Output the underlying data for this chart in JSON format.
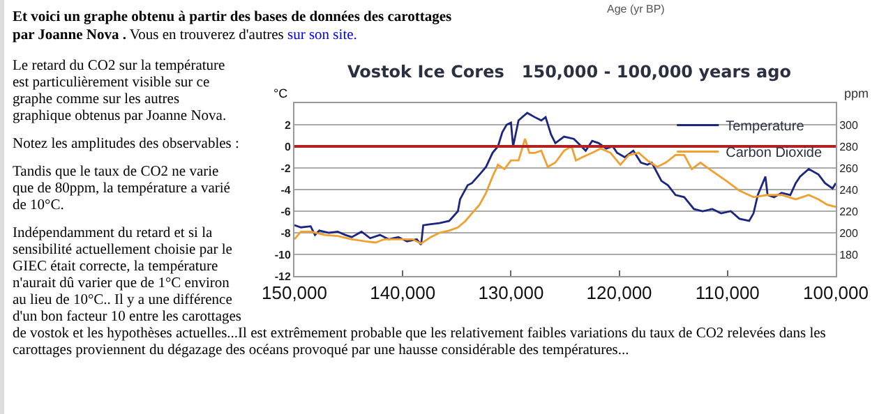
{
  "chart_data": {
    "type": "line",
    "title": "Vostok Ice Cores   150,000 - 100,000 years ago",
    "ylabel": "°C",
    "y2label": "ppm",
    "annotations": [
      "Age (yr BP)",
      "Et voici un graphe obtenu à partir des bases de données des carottages par Joanne Nova .",
      "Vous en trouverez d'autres",
      "sur son site.",
      "Le retard du CO2 sur la température est particulièrement visible sur ce graphe comme sur les autres graphique obtenus par Joanne Nova.",
      "Notez les amplitudes des observables :",
      "Tandis que le taux de CO2 ne varie que de 80ppm, la température a varié de 10°C.",
      "Indépendamment du retard et si la sensibilité actuellement choisie par le GIEC était correcte, la température n'aurait dû varier que de 1°C environ au lieu de 10°C.. Il y a une différence d'un bon facteur 10 entre les carottages de vostok et les hypothèses actuelles...Il est extrêmement probable que les relativement faibles variations du taux de CO2 relevées dans les carottages proviennent du dégazage des océans provoqué par une hausse considérable des températures..."
    ],
    "xlim": [
      150000,
      100000
    ],
    "xticks": [
      {
        "value": 150000,
        "label": "150,000"
      },
      {
        "value": 140000,
        "label": "140,000"
      },
      {
        "value": 130000,
        "label": "130,000"
      },
      {
        "value": 120000,
        "label": "120,000"
      },
      {
        "value": 110000,
        "label": "110,000"
      },
      {
        "value": 100000,
        "label": "100,000"
      }
    ],
    "ylim": [
      -12,
      4
    ],
    "yticks": [
      -12,
      -10,
      -8,
      -6,
      -4,
      -2,
      0,
      2
    ],
    "y2lim": [
      160,
      320
    ],
    "y2ticks": [
      180,
      200,
      220,
      240,
      260,
      280,
      300
    ],
    "grid": "y",
    "legend": "top right",
    "ref_lines": [
      {
        "axis": "y",
        "value": 0,
        "color": "#b22222"
      }
    ],
    "series": [
      {
        "name": "Temperature",
        "color": "#1c2580",
        "x": [
          150000,
          149400,
          148500,
          148100,
          147700,
          146800,
          146000,
          145300,
          144700,
          143800,
          143000,
          142100,
          141300,
          140400,
          139600,
          138700,
          138300,
          138100,
          137400,
          136600,
          135700,
          134900,
          134700,
          134000,
          133600,
          132900,
          132300,
          131700,
          131200,
          130800,
          130400,
          130000,
          129800,
          129300,
          128500,
          127800,
          127200,
          126800,
          126300,
          125900,
          125100,
          124200,
          123800,
          123100,
          122500,
          121900,
          121200,
          120600,
          120200,
          119500,
          118700,
          118000,
          117400,
          117000,
          116100,
          115500,
          114800,
          114000,
          113100,
          112300,
          111400,
          110600,
          109700,
          108900,
          108000,
          107600,
          107200,
          106500,
          106300,
          105700,
          105000,
          104200,
          103700,
          103300,
          102500,
          101600,
          101000,
          100300,
          100000
        ],
        "values": [
          -7.3,
          -7.5,
          -7.4,
          -8.2,
          -7.8,
          -8.0,
          -7.9,
          -8.2,
          -8.4,
          -7.9,
          -8.5,
          -8.2,
          -8.6,
          -8.4,
          -8.8,
          -8.6,
          -9.1,
          -7.3,
          -7.2,
          -7.1,
          -6.9,
          -6.0,
          -4.9,
          -3.6,
          -3.4,
          -2.6,
          -1.9,
          -0.6,
          0.0,
          1.3,
          2.0,
          2.2,
          0.0,
          2.4,
          3.1,
          2.7,
          2.4,
          2.7,
          1.1,
          0.3,
          0.9,
          0.7,
          0.3,
          -0.4,
          0.5,
          0.3,
          -0.2,
          0.0,
          -0.6,
          -1.0,
          -0.4,
          -1.5,
          -1.7,
          -1.5,
          -3.2,
          -3.6,
          -4.5,
          -4.7,
          -5.8,
          -6.0,
          -5.8,
          -6.2,
          -6.0,
          -6.7,
          -6.9,
          -6.2,
          -4.5,
          -2.8,
          -4.5,
          -4.7,
          -4.3,
          -4.5,
          -3.4,
          -2.8,
          -2.1,
          -2.6,
          -3.4,
          -3.9,
          -3.4
        ]
      },
      {
        "name": "Carbon Dioxide",
        "color": "#f0a030",
        "axis": "y2",
        "x": [
          150000,
          149400,
          148500,
          147200,
          146000,
          144700,
          143400,
          142500,
          141700,
          140400,
          139100,
          138300,
          137400,
          136600,
          135700,
          134900,
          134200,
          133600,
          132900,
          132300,
          131700,
          131200,
          130600,
          130000,
          129300,
          128700,
          128300,
          127800,
          127200,
          126600,
          125900,
          125100,
          124400,
          124000,
          123400,
          122500,
          121700,
          120800,
          119900,
          119100,
          118200,
          117400,
          116500,
          115700,
          114800,
          114000,
          113300,
          112500,
          111400,
          110100,
          108900,
          107600,
          106300,
          105000,
          103700,
          102500,
          101600,
          100800,
          100000
        ],
        "values": [
          194,
          201,
          201,
          198,
          197,
          194,
          192,
          191,
          194,
          194,
          194,
          190,
          196,
          200,
          202,
          205,
          211,
          218,
          226,
          237,
          252,
          263,
          259,
          267,
          267,
          287,
          274,
          274,
          276,
          261,
          265,
          276,
          280,
          267,
          270,
          274,
          278,
          274,
          263,
          272,
          274,
          267,
          261,
          265,
          272,
          272,
          259,
          265,
          257,
          248,
          239,
          233,
          235,
          235,
          231,
          235,
          231,
          226,
          224
        ]
      }
    ]
  }
}
